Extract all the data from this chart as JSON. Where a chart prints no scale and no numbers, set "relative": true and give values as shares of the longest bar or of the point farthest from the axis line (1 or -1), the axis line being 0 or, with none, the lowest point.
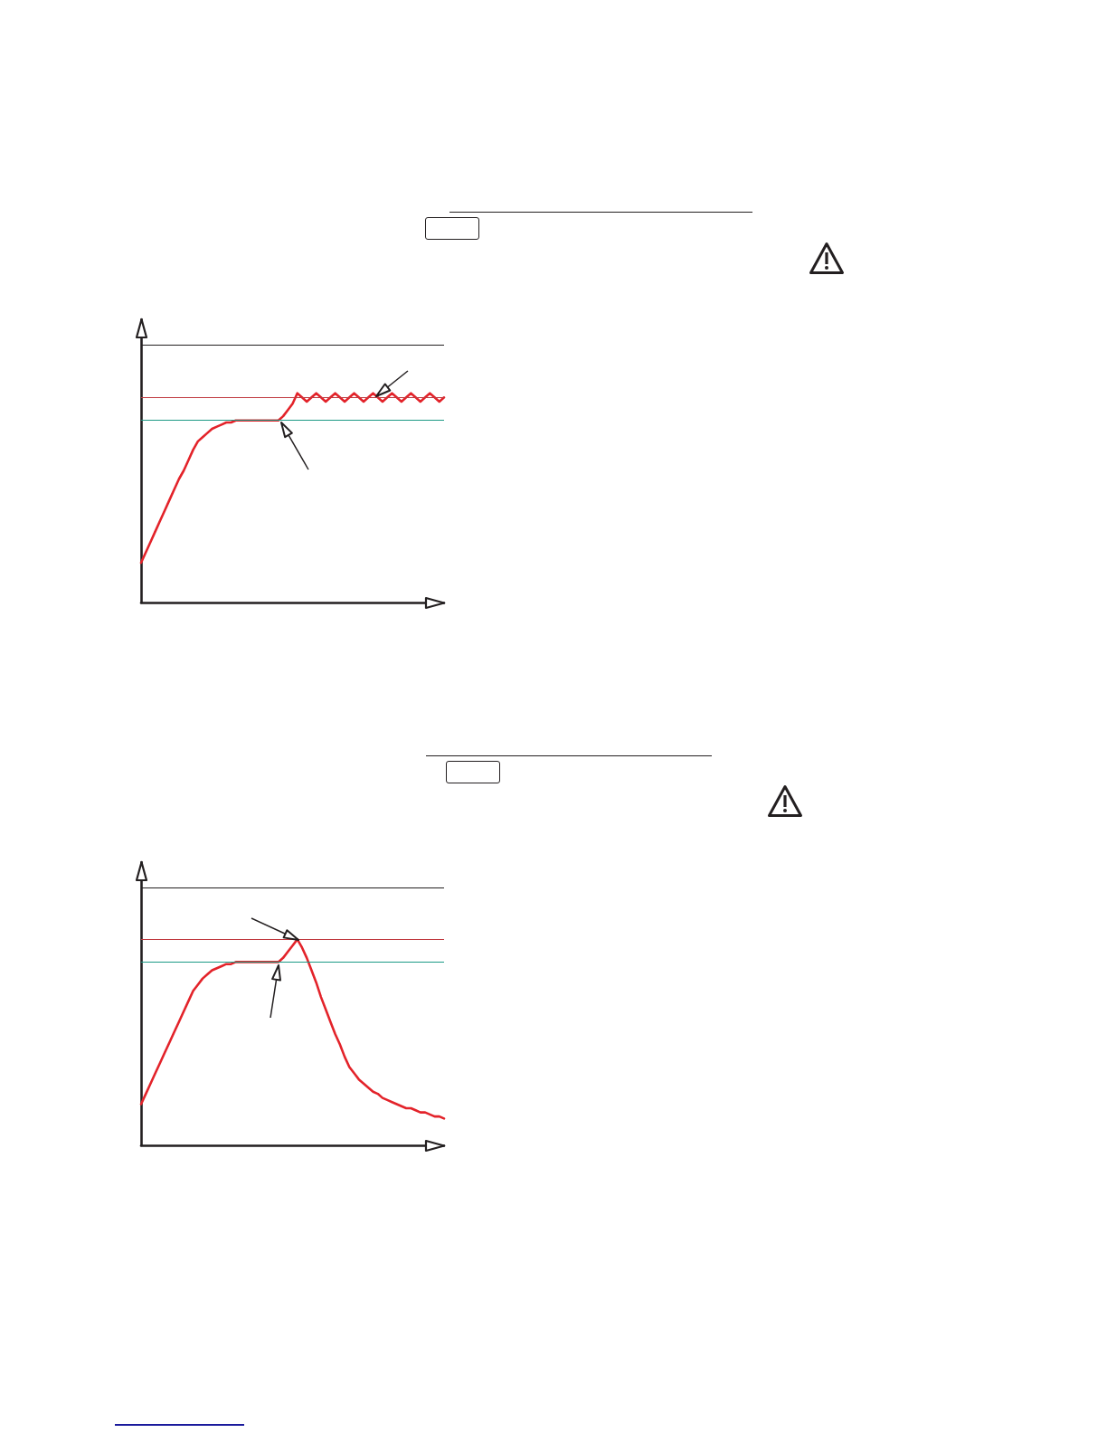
{
  "chart_data": [
    {
      "type": "line",
      "relative": true,
      "marker": "none",
      "categories": [
        null,
        null,
        null,
        null,
        null,
        null,
        null,
        null,
        null,
        null,
        null,
        null,
        null,
        null,
        null,
        null,
        null,
        null,
        null,
        null,
        null,
        null,
        null,
        null,
        null,
        null,
        null,
        null,
        null,
        null,
        null,
        null,
        null,
        null,
        null,
        null,
        null,
        null,
        null,
        null,
        null,
        null,
        null,
        null,
        null,
        null,
        null,
        null,
        null,
        null,
        null,
        null,
        null,
        null,
        null,
        null,
        null,
        null,
        null,
        null,
        null,
        null,
        null,
        null,
        null
      ],
      "series": [
        {
          "color": "#e3232a",
          "values": [
            0.19,
            0.24,
            0.29,
            0.34,
            0.39,
            0.44,
            0.49,
            0.54,
            0.59,
            0.63,
            0.68,
            0.73,
            0.77,
            0.79,
            0.81,
            0.83,
            0.84,
            0.85,
            0.86,
            0.86,
            0.87,
            0.87,
            0.87,
            0.87,
            0.87,
            0.87,
            0.87,
            0.87,
            0.87,
            0.87,
            0.89,
            0.92,
            0.95,
            1.0,
            0.98,
            0.96,
            0.98,
            1.0,
            0.98,
            0.96,
            0.98,
            1.0,
            0.98,
            0.96,
            0.98,
            1.0,
            0.98,
            0.96,
            0.98,
            1.0,
            0.98,
            0.96,
            0.98,
            1.0,
            0.98,
            0.96,
            0.98,
            1.0,
            0.98,
            0.96,
            0.98,
            1.0,
            0.98,
            0.96,
            0.98
          ]
        }
      ],
      "ref_lines": [
        {
          "axis": "y",
          "value": 1.23,
          "color": "#231f20"
        },
        {
          "axis": "y",
          "value": 0.98,
          "color": "#c0393f"
        },
        {
          "axis": "y",
          "value": 0.87,
          "color": "#1d9a86"
        }
      ]
    },
    {
      "type": "line",
      "relative": true,
      "marker": "none",
      "categories": [
        null,
        null,
        null,
        null,
        null,
        null,
        null,
        null,
        null,
        null,
        null,
        null,
        null,
        null,
        null,
        null,
        null,
        null,
        null,
        null,
        null,
        null,
        null,
        null,
        null,
        null,
        null,
        null,
        null,
        null,
        null,
        null,
        null,
        null,
        null,
        null,
        null,
        null,
        null,
        null,
        null,
        null,
        null,
        null,
        null,
        null,
        null,
        null,
        null,
        null,
        null,
        null,
        null,
        null,
        null,
        null,
        null,
        null,
        null,
        null,
        null,
        null,
        null,
        null,
        null
      ],
      "series": [
        {
          "color": "#e3232a",
          "values": [
            0.2,
            0.25,
            0.3,
            0.35,
            0.4,
            0.45,
            0.5,
            0.55,
            0.6,
            0.65,
            0.7,
            0.75,
            0.78,
            0.81,
            0.83,
            0.85,
            0.86,
            0.87,
            0.88,
            0.88,
            0.89,
            0.89,
            0.89,
            0.89,
            0.89,
            0.89,
            0.89,
            0.89,
            0.89,
            0.89,
            0.91,
            0.94,
            0.97,
            1.0,
            0.96,
            0.91,
            0.85,
            0.79,
            0.72,
            0.66,
            0.6,
            0.54,
            0.49,
            0.43,
            0.38,
            0.35,
            0.32,
            0.3,
            0.28,
            0.26,
            0.25,
            0.23,
            0.22,
            0.21,
            0.2,
            0.19,
            0.18,
            0.18,
            0.17,
            0.16,
            0.16,
            0.15,
            0.14,
            0.14,
            0.13
          ]
        }
      ],
      "ref_lines": [
        {
          "axis": "y",
          "value": 1.25,
          "color": "#231f20"
        },
        {
          "axis": "y",
          "value": 1.0,
          "color": "#c0393f"
        },
        {
          "axis": "y",
          "value": 0.89,
          "color": "#1d9a86"
        }
      ]
    }
  ]
}
